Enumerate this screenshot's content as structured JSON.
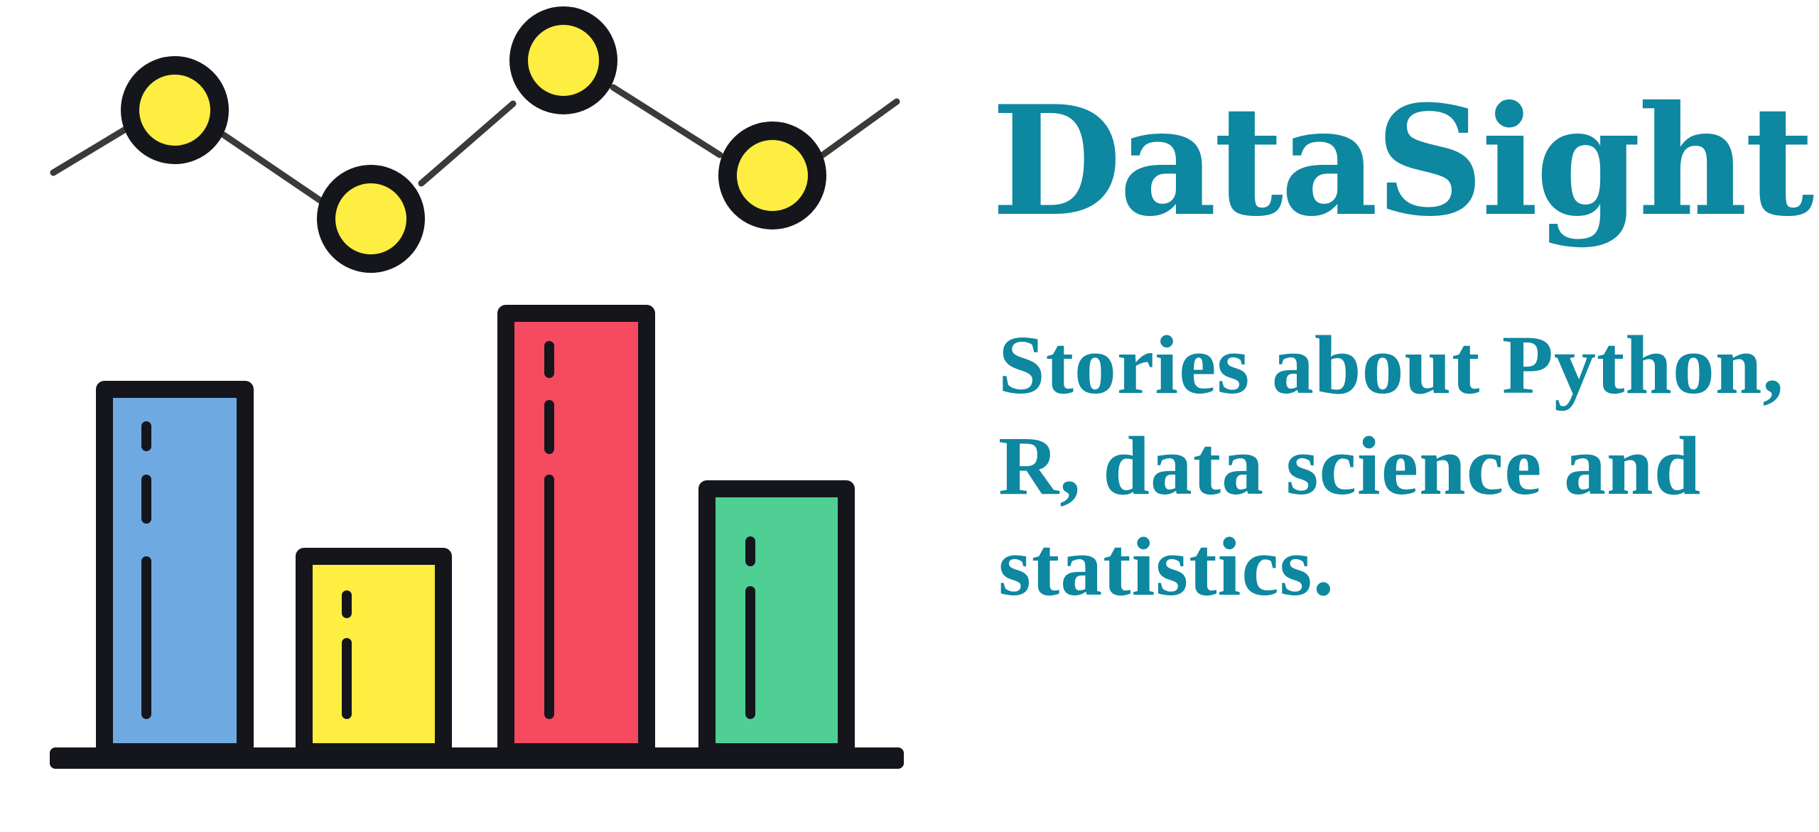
{
  "brand": {
    "name": "DataSight",
    "tagline": "Stories about Python, R, data science and statistics.",
    "text_color": "#0e87a0"
  },
  "logo": {
    "icon": "bar-and-line-chart-icon",
    "outline_color": "#14161c",
    "marker_color": "#fdee41",
    "bar_colors": [
      "#6fa9e2",
      "#fdee41",
      "#f64a60",
      "#4fcf94"
    ]
  }
}
